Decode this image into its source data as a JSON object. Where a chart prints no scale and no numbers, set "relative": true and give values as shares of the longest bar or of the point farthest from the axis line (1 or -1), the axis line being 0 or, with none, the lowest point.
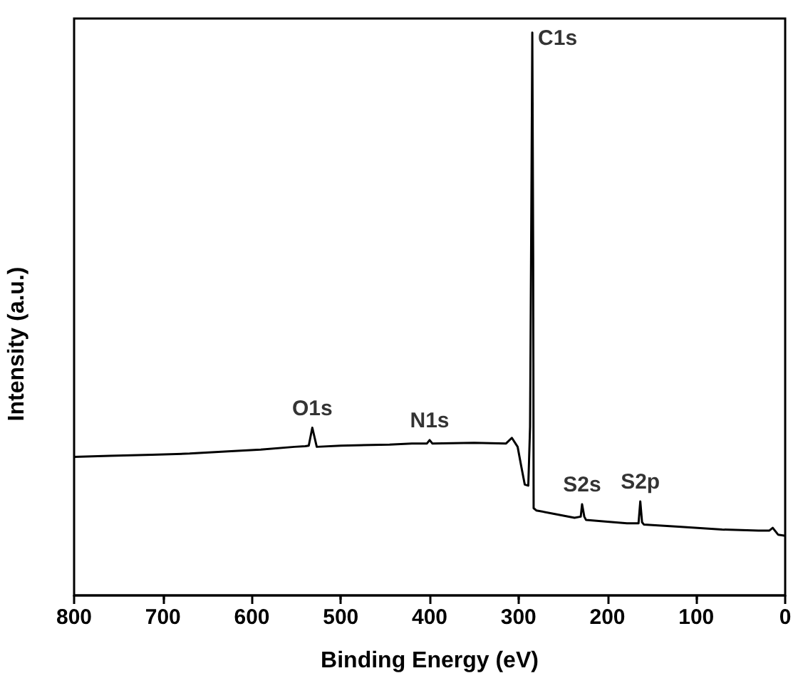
{
  "chart_data": {
    "type": "line",
    "xlabel": "Binding Energy (eV)",
    "ylabel": "Intensity (a.u.)",
    "relative": true,
    "xlim": [
      800,
      0
    ],
    "xticks": [
      800,
      700,
      600,
      500,
      400,
      300,
      200,
      100,
      0
    ],
    "grid": false,
    "marker": "none",
    "line_style": "solid",
    "series": [
      {
        "color": "#000000",
        "x": [
          800,
          760,
          712,
          670,
          627,
          590,
          552,
          540,
          536,
          532,
          527,
          500,
          445,
          420,
          403,
          400,
          397,
          350,
          314,
          307.5,
          301,
          297,
          293,
          289,
          287,
          285.5,
          284.5,
          283.5,
          283,
          280,
          260,
          237,
          230,
          228.5,
          226,
          224,
          200,
          178,
          165,
          163,
          161,
          159,
          120,
          71,
          30,
          18,
          14,
          8,
          0
        ],
        "values": [
          0.246,
          0.248,
          0.25,
          0.252,
          0.256,
          0.259,
          0.264,
          0.265,
          0.266,
          0.298,
          0.264,
          0.266,
          0.268,
          0.27,
          0.27,
          0.276,
          0.27,
          0.271,
          0.27,
          0.28,
          0.264,
          0.23,
          0.197,
          0.195,
          0.3,
          0.7,
          1.0,
          0.6,
          0.155,
          0.151,
          0.145,
          0.138,
          0.14,
          0.162,
          0.14,
          0.134,
          0.131,
          0.128,
          0.128,
          0.167,
          0.13,
          0.126,
          0.122,
          0.117,
          0.115,
          0.115,
          0.12,
          0.108,
          0.106
        ]
      }
    ],
    "annotations": [
      {
        "text": "O1s",
        "x": 532,
        "y": 0.298
      },
      {
        "text": "N1s",
        "x": 400,
        "y": 0.276
      },
      {
        "text": "C1s",
        "x": 284.5,
        "y": 1.0
      },
      {
        "text": "S2s",
        "x": 228.5,
        "y": 0.162
      },
      {
        "text": "S2p",
        "x": 163,
        "y": 0.167
      }
    ]
  }
}
